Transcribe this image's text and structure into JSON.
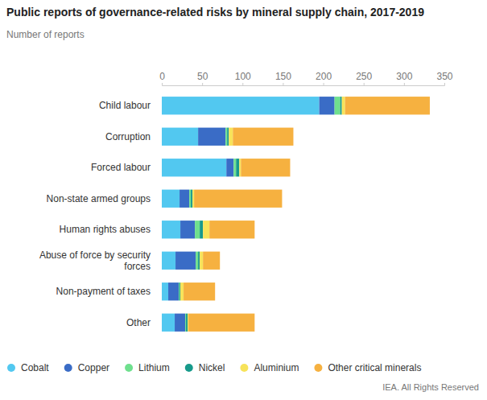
{
  "chart_data": {
    "type": "bar",
    "orientation": "horizontal",
    "stacked": true,
    "grid": false,
    "legend": "bottom",
    "title": "Public reports of governance-related risks by mineral supply chain, 2017-2019",
    "subtitle": "Number of reports",
    "source": "IEA. All Rights Reserved",
    "categories": [
      "Child labour",
      "Corruption",
      "Forced labour",
      "Non-state armed groups",
      "Human rights abuses",
      "Abuse of force by security forces",
      "Non-payment of taxes",
      "Other"
    ],
    "xlim": [
      0,
      350
    ],
    "xticks": [
      0,
      50,
      100,
      150,
      200,
      250,
      300,
      350
    ],
    "series": [
      {
        "name": "Cobalt",
        "color": "#52c8f0",
        "values": [
          195,
          45,
          80,
          22,
          23,
          17,
          8,
          16
        ]
      },
      {
        "name": "Copper",
        "color": "#3a6cc6",
        "values": [
          19,
          34,
          9,
          12,
          18,
          25,
          13,
          13
        ]
      },
      {
        "name": "Lithium",
        "color": "#6fe08e",
        "values": [
          7,
          2,
          3,
          2,
          6,
          3,
          1,
          1
        ]
      },
      {
        "name": "Nickel",
        "color": "#179a8b",
        "values": [
          2,
          2,
          4,
          2,
          4,
          2,
          1,
          2
        ]
      },
      {
        "name": "Aluminium",
        "color": "#f7e35a",
        "values": [
          4,
          5,
          2,
          2,
          8,
          4,
          4,
          1
        ]
      },
      {
        "name": "Other critical minerals",
        "color": "#f6b140",
        "values": [
          105,
          75,
          61,
          109,
          56,
          21,
          39,
          82
        ]
      }
    ]
  }
}
